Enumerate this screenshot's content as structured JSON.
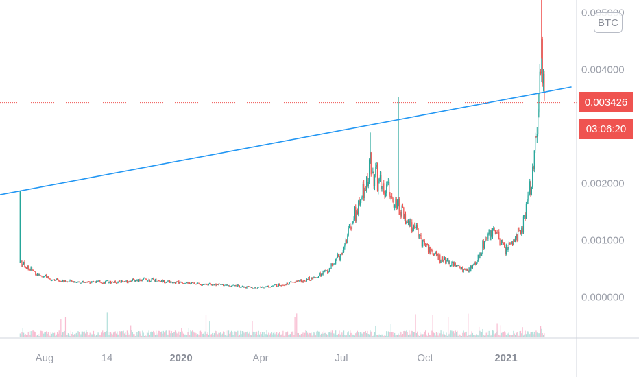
{
  "chart_data": {
    "type": "candlestick",
    "symbol_badge": "BTC",
    "last_price": "0.003426",
    "countdown": "03:06:20",
    "y_ticks": [
      "0.005000",
      "0.004000",
      "0.002000",
      "0.001000",
      "0.000000"
    ],
    "x_ticks": [
      {
        "label": "Aug",
        "bold": false
      },
      {
        "label": "14",
        "bold": false
      },
      {
        "label": "2020",
        "bold": true
      },
      {
        "label": "Apr",
        "bold": false
      },
      {
        "label": "Jul",
        "bold": false
      },
      {
        "label": "Oct",
        "bold": false
      },
      {
        "label": "2021",
        "bold": true
      }
    ],
    "x_range": [
      "2019-07",
      "2021-03"
    ],
    "y_range": [
      -0.0004,
      0.0052
    ],
    "price_series": [
      {
        "t": "2019-07-15",
        "v": 3e-05
      },
      {
        "t": "2019-07-16",
        "v": 0.00062,
        "high": 0.00187
      },
      {
        "t": "2019-07-25",
        "v": 0.00052
      },
      {
        "t": "2019-08-05",
        "v": 0.0004
      },
      {
        "t": "2019-08-20",
        "v": 0.00032
      },
      {
        "t": "2019-09-05",
        "v": 0.00028
      },
      {
        "t": "2019-10-01",
        "v": 0.00027
      },
      {
        "t": "2019-11-01",
        "v": 0.00027
      },
      {
        "t": "2019-12-01",
        "v": 0.00032
      },
      {
        "t": "2020-01-01",
        "v": 0.00027
      },
      {
        "t": "2020-02-01",
        "v": 0.00024
      },
      {
        "t": "2020-03-01",
        "v": 0.00022
      },
      {
        "t": "2020-04-01",
        "v": 0.00017
      },
      {
        "t": "2020-05-01",
        "v": 0.00023
      },
      {
        "t": "2020-06-01",
        "v": 0.00033
      },
      {
        "t": "2020-06-20",
        "v": 0.00048
      },
      {
        "t": "2020-07-05",
        "v": 0.0008
      },
      {
        "t": "2020-07-15",
        "v": 0.0013
      },
      {
        "t": "2020-07-25",
        "v": 0.00165
      },
      {
        "t": "2020-08-05",
        "v": 0.00235,
        "high": 0.0029
      },
      {
        "t": "2020-08-15",
        "v": 0.00195
      },
      {
        "t": "2020-08-25",
        "v": 0.0019
      },
      {
        "t": "2020-09-05",
        "v": 0.0016,
        "high": 0.00353
      },
      {
        "t": "2020-09-20",
        "v": 0.00125
      },
      {
        "t": "2020-10-05",
        "v": 0.0009
      },
      {
        "t": "2020-10-20",
        "v": 0.0007
      },
      {
        "t": "2020-11-05",
        "v": 0.00058
      },
      {
        "t": "2020-11-20",
        "v": 0.00045
      },
      {
        "t": "2020-12-01",
        "v": 0.00065
      },
      {
        "t": "2020-12-10",
        "v": 0.001
      },
      {
        "t": "2020-12-20",
        "v": 0.00115
      },
      {
        "t": "2021-01-01",
        "v": 0.00085
      },
      {
        "t": "2021-01-10",
        "v": 0.00098
      },
      {
        "t": "2021-01-20",
        "v": 0.00125
      },
      {
        "t": "2021-01-30",
        "v": 0.002
      },
      {
        "t": "2021-02-05",
        "v": 0.0029
      },
      {
        "t": "2021-02-10",
        "v": 0.0042,
        "high": 0.0053
      },
      {
        "t": "2021-02-13",
        "v": 0.003426
      }
    ],
    "trendline": {
      "from": {
        "t": "2019-06-15",
        "v": 0.00178
      },
      "to": {
        "t": "2021-03-15",
        "v": 0.0037
      }
    },
    "colors": {
      "up": "#26a69a",
      "down": "#ef5350",
      "trendline": "#2196f3",
      "price_line": "#ef5350",
      "axis": "#9a9ea8"
    }
  }
}
